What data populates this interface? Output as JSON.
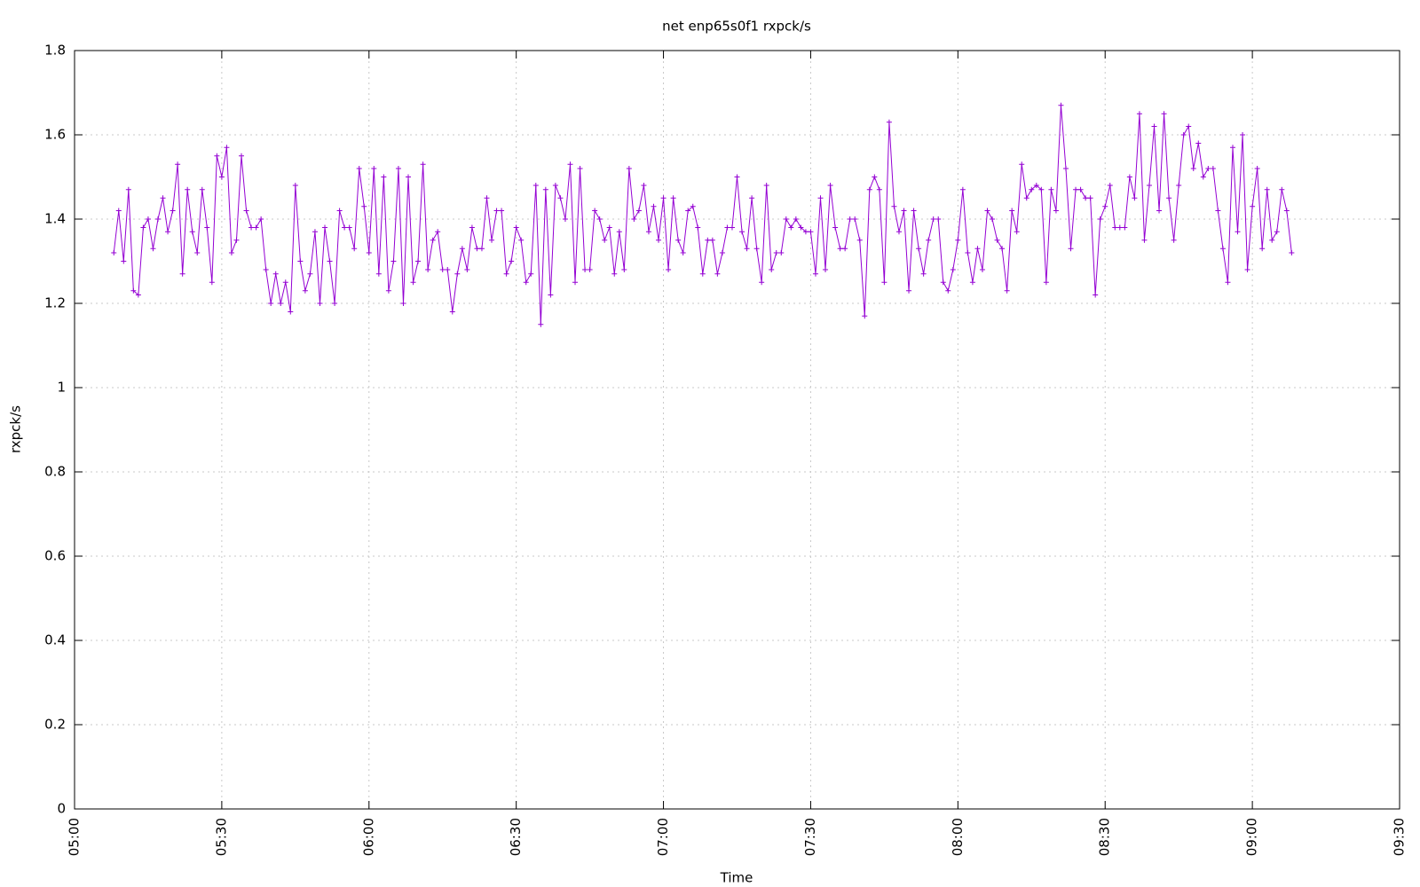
{
  "chart_data": {
    "type": "line",
    "title": "net enp65s0f1 rxpck/s",
    "x_label": "Time",
    "y_label": "rxpck/s",
    "xlim": [
      "05:00",
      "09:30"
    ],
    "xticks": [
      "05:00",
      "05:30",
      "06:00",
      "06:30",
      "07:00",
      "07:30",
      "08:00",
      "08:30",
      "09:00",
      "09:30"
    ],
    "ylim": [
      0,
      1.8
    ],
    "yticks": [
      0,
      0.2,
      0.4,
      0.6,
      0.8,
      1,
      1.2,
      1.4,
      1.6,
      1.8
    ],
    "grid": true,
    "x": [
      "05:08",
      "05:09",
      "05:10",
      "05:11",
      "05:12",
      "05:13",
      "05:14",
      "05:15",
      "05:16",
      "05:17",
      "05:18",
      "05:19",
      "05:20",
      "05:21",
      "05:22",
      "05:23",
      "05:24",
      "05:25",
      "05:26",
      "05:27",
      "05:28",
      "05:29",
      "05:30",
      "05:31",
      "05:32",
      "05:33",
      "05:34",
      "05:35",
      "05:36",
      "05:37",
      "05:38",
      "05:39",
      "05:40",
      "05:41",
      "05:42",
      "05:43",
      "05:44",
      "05:45",
      "05:46",
      "05:47",
      "05:48",
      "05:49",
      "05:50",
      "05:51",
      "05:52",
      "05:53",
      "05:54",
      "05:55",
      "05:56",
      "05:57",
      "05:58",
      "05:59",
      "06:00",
      "06:01",
      "06:02",
      "06:03",
      "06:04",
      "06:05",
      "06:06",
      "06:07",
      "06:08",
      "06:09",
      "06:10",
      "06:11",
      "06:12",
      "06:13",
      "06:14",
      "06:15",
      "06:16",
      "06:17",
      "06:18",
      "06:19",
      "06:20",
      "06:21",
      "06:22",
      "06:23",
      "06:24",
      "06:25",
      "06:26",
      "06:27",
      "06:28",
      "06:29",
      "06:30",
      "06:31",
      "06:32",
      "06:33",
      "06:34",
      "06:35",
      "06:36",
      "06:37",
      "06:38",
      "06:39",
      "06:40",
      "06:41",
      "06:42",
      "06:43",
      "06:44",
      "06:45",
      "06:46",
      "06:47",
      "06:48",
      "06:49",
      "06:50",
      "06:51",
      "06:52",
      "06:53",
      "06:54",
      "06:55",
      "06:56",
      "06:57",
      "06:58",
      "06:59",
      "07:00",
      "07:01",
      "07:02",
      "07:03",
      "07:04",
      "07:05",
      "07:06",
      "07:07",
      "07:08",
      "07:09",
      "07:10",
      "07:11",
      "07:12",
      "07:13",
      "07:14",
      "07:15",
      "07:16",
      "07:17",
      "07:18",
      "07:19",
      "07:20",
      "07:21",
      "07:22",
      "07:23",
      "07:24",
      "07:25",
      "07:26",
      "07:27",
      "07:28",
      "07:29",
      "07:30",
      "07:31",
      "07:32",
      "07:33",
      "07:34",
      "07:35",
      "07:36",
      "07:37",
      "07:38",
      "07:39",
      "07:40",
      "07:41",
      "07:42",
      "07:43",
      "07:44",
      "07:45",
      "07:46",
      "07:47",
      "07:48",
      "07:49",
      "07:50",
      "07:51",
      "07:52",
      "07:53",
      "07:54",
      "07:55",
      "07:56",
      "07:57",
      "07:58",
      "07:59",
      "08:00",
      "08:01",
      "08:02",
      "08:03",
      "08:04",
      "08:05",
      "08:06",
      "08:07",
      "08:08",
      "08:09",
      "08:10",
      "08:11",
      "08:12",
      "08:13",
      "08:14",
      "08:15",
      "08:16",
      "08:17",
      "08:18",
      "08:19",
      "08:20",
      "08:21",
      "08:22",
      "08:23",
      "08:24",
      "08:25",
      "08:26",
      "08:27",
      "08:28",
      "08:29",
      "08:30",
      "08:31",
      "08:32",
      "08:33",
      "08:34",
      "08:35",
      "08:36",
      "08:37",
      "08:38",
      "08:39",
      "08:40",
      "08:41",
      "08:42",
      "08:43",
      "08:44",
      "08:45",
      "08:46",
      "08:47",
      "08:48",
      "08:49",
      "08:50",
      "08:51",
      "08:52",
      "08:53",
      "08:54",
      "08:55",
      "08:56",
      "08:57",
      "08:58",
      "08:59",
      "09:00",
      "09:01",
      "09:02",
      "09:03",
      "09:04",
      "09:05",
      "09:06",
      "09:07",
      "09:08"
    ],
    "series": [
      {
        "name": "rxpck/s",
        "color": "#9400d3",
        "values": [
          1.32,
          1.42,
          1.3,
          1.47,
          1.23,
          1.22,
          1.38,
          1.4,
          1.33,
          1.4,
          1.45,
          1.37,
          1.42,
          1.53,
          1.27,
          1.47,
          1.37,
          1.32,
          1.47,
          1.38,
          1.25,
          1.55,
          1.5,
          1.57,
          1.32,
          1.35,
          1.55,
          1.42,
          1.38,
          1.38,
          1.4,
          1.28,
          1.2,
          1.27,
          1.2,
          1.25,
          1.18,
          1.48,
          1.3,
          1.23,
          1.27,
          1.37,
          1.2,
          1.38,
          1.3,
          1.2,
          1.42,
          1.38,
          1.38,
          1.33,
          1.52,
          1.43,
          1.32,
          1.52,
          1.27,
          1.5,
          1.23,
          1.3,
          1.52,
          1.2,
          1.5,
          1.25,
          1.3,
          1.53,
          1.28,
          1.35,
          1.37,
          1.28,
          1.28,
          1.18,
          1.27,
          1.33,
          1.28,
          1.38,
          1.33,
          1.33,
          1.45,
          1.35,
          1.42,
          1.42,
          1.27,
          1.3,
          1.38,
          1.35,
          1.25,
          1.27,
          1.48,
          1.15,
          1.47,
          1.22,
          1.48,
          1.45,
          1.4,
          1.53,
          1.25,
          1.52,
          1.28,
          1.28,
          1.42,
          1.4,
          1.35,
          1.38,
          1.27,
          1.37,
          1.28,
          1.52,
          1.4,
          1.42,
          1.48,
          1.37,
          1.43,
          1.35,
          1.45,
          1.28,
          1.45,
          1.35,
          1.32,
          1.42,
          1.43,
          1.38,
          1.27,
          1.35,
          1.35,
          1.27,
          1.32,
          1.38,
          1.38,
          1.5,
          1.37,
          1.33,
          1.45,
          1.33,
          1.25,
          1.48,
          1.28,
          1.32,
          1.32,
          1.4,
          1.38,
          1.4,
          1.38,
          1.37,
          1.37,
          1.27,
          1.45,
          1.28,
          1.48,
          1.38,
          1.33,
          1.33,
          1.4,
          1.4,
          1.35,
          1.17,
          1.47,
          1.5,
          1.47,
          1.25,
          1.63,
          1.43,
          1.37,
          1.42,
          1.23,
          1.42,
          1.33,
          1.27,
          1.35,
          1.4,
          1.4,
          1.25,
          1.23,
          1.28,
          1.35,
          1.47,
          1.32,
          1.25,
          1.33,
          1.28,
          1.42,
          1.4,
          1.35,
          1.33,
          1.23,
          1.42,
          1.37,
          1.53,
          1.45,
          1.47,
          1.48,
          1.47,
          1.25,
          1.47,
          1.42,
          1.67,
          1.52,
          1.33,
          1.47,
          1.47,
          1.45,
          1.45,
          1.22,
          1.4,
          1.43,
          1.48,
          1.38,
          1.38,
          1.38,
          1.5,
          1.45,
          1.65,
          1.35,
          1.48,
          1.62,
          1.42,
          1.65,
          1.45,
          1.35,
          1.48,
          1.6,
          1.62,
          1.52,
          1.58,
          1.5,
          1.52,
          1.52,
          1.42,
          1.33,
          1.25,
          1.57,
          1.37,
          1.6,
          1.28,
          1.43,
          1.52,
          1.33,
          1.47,
          1.35,
          1.37,
          1.47,
          1.42,
          1.32
        ]
      }
    ]
  }
}
